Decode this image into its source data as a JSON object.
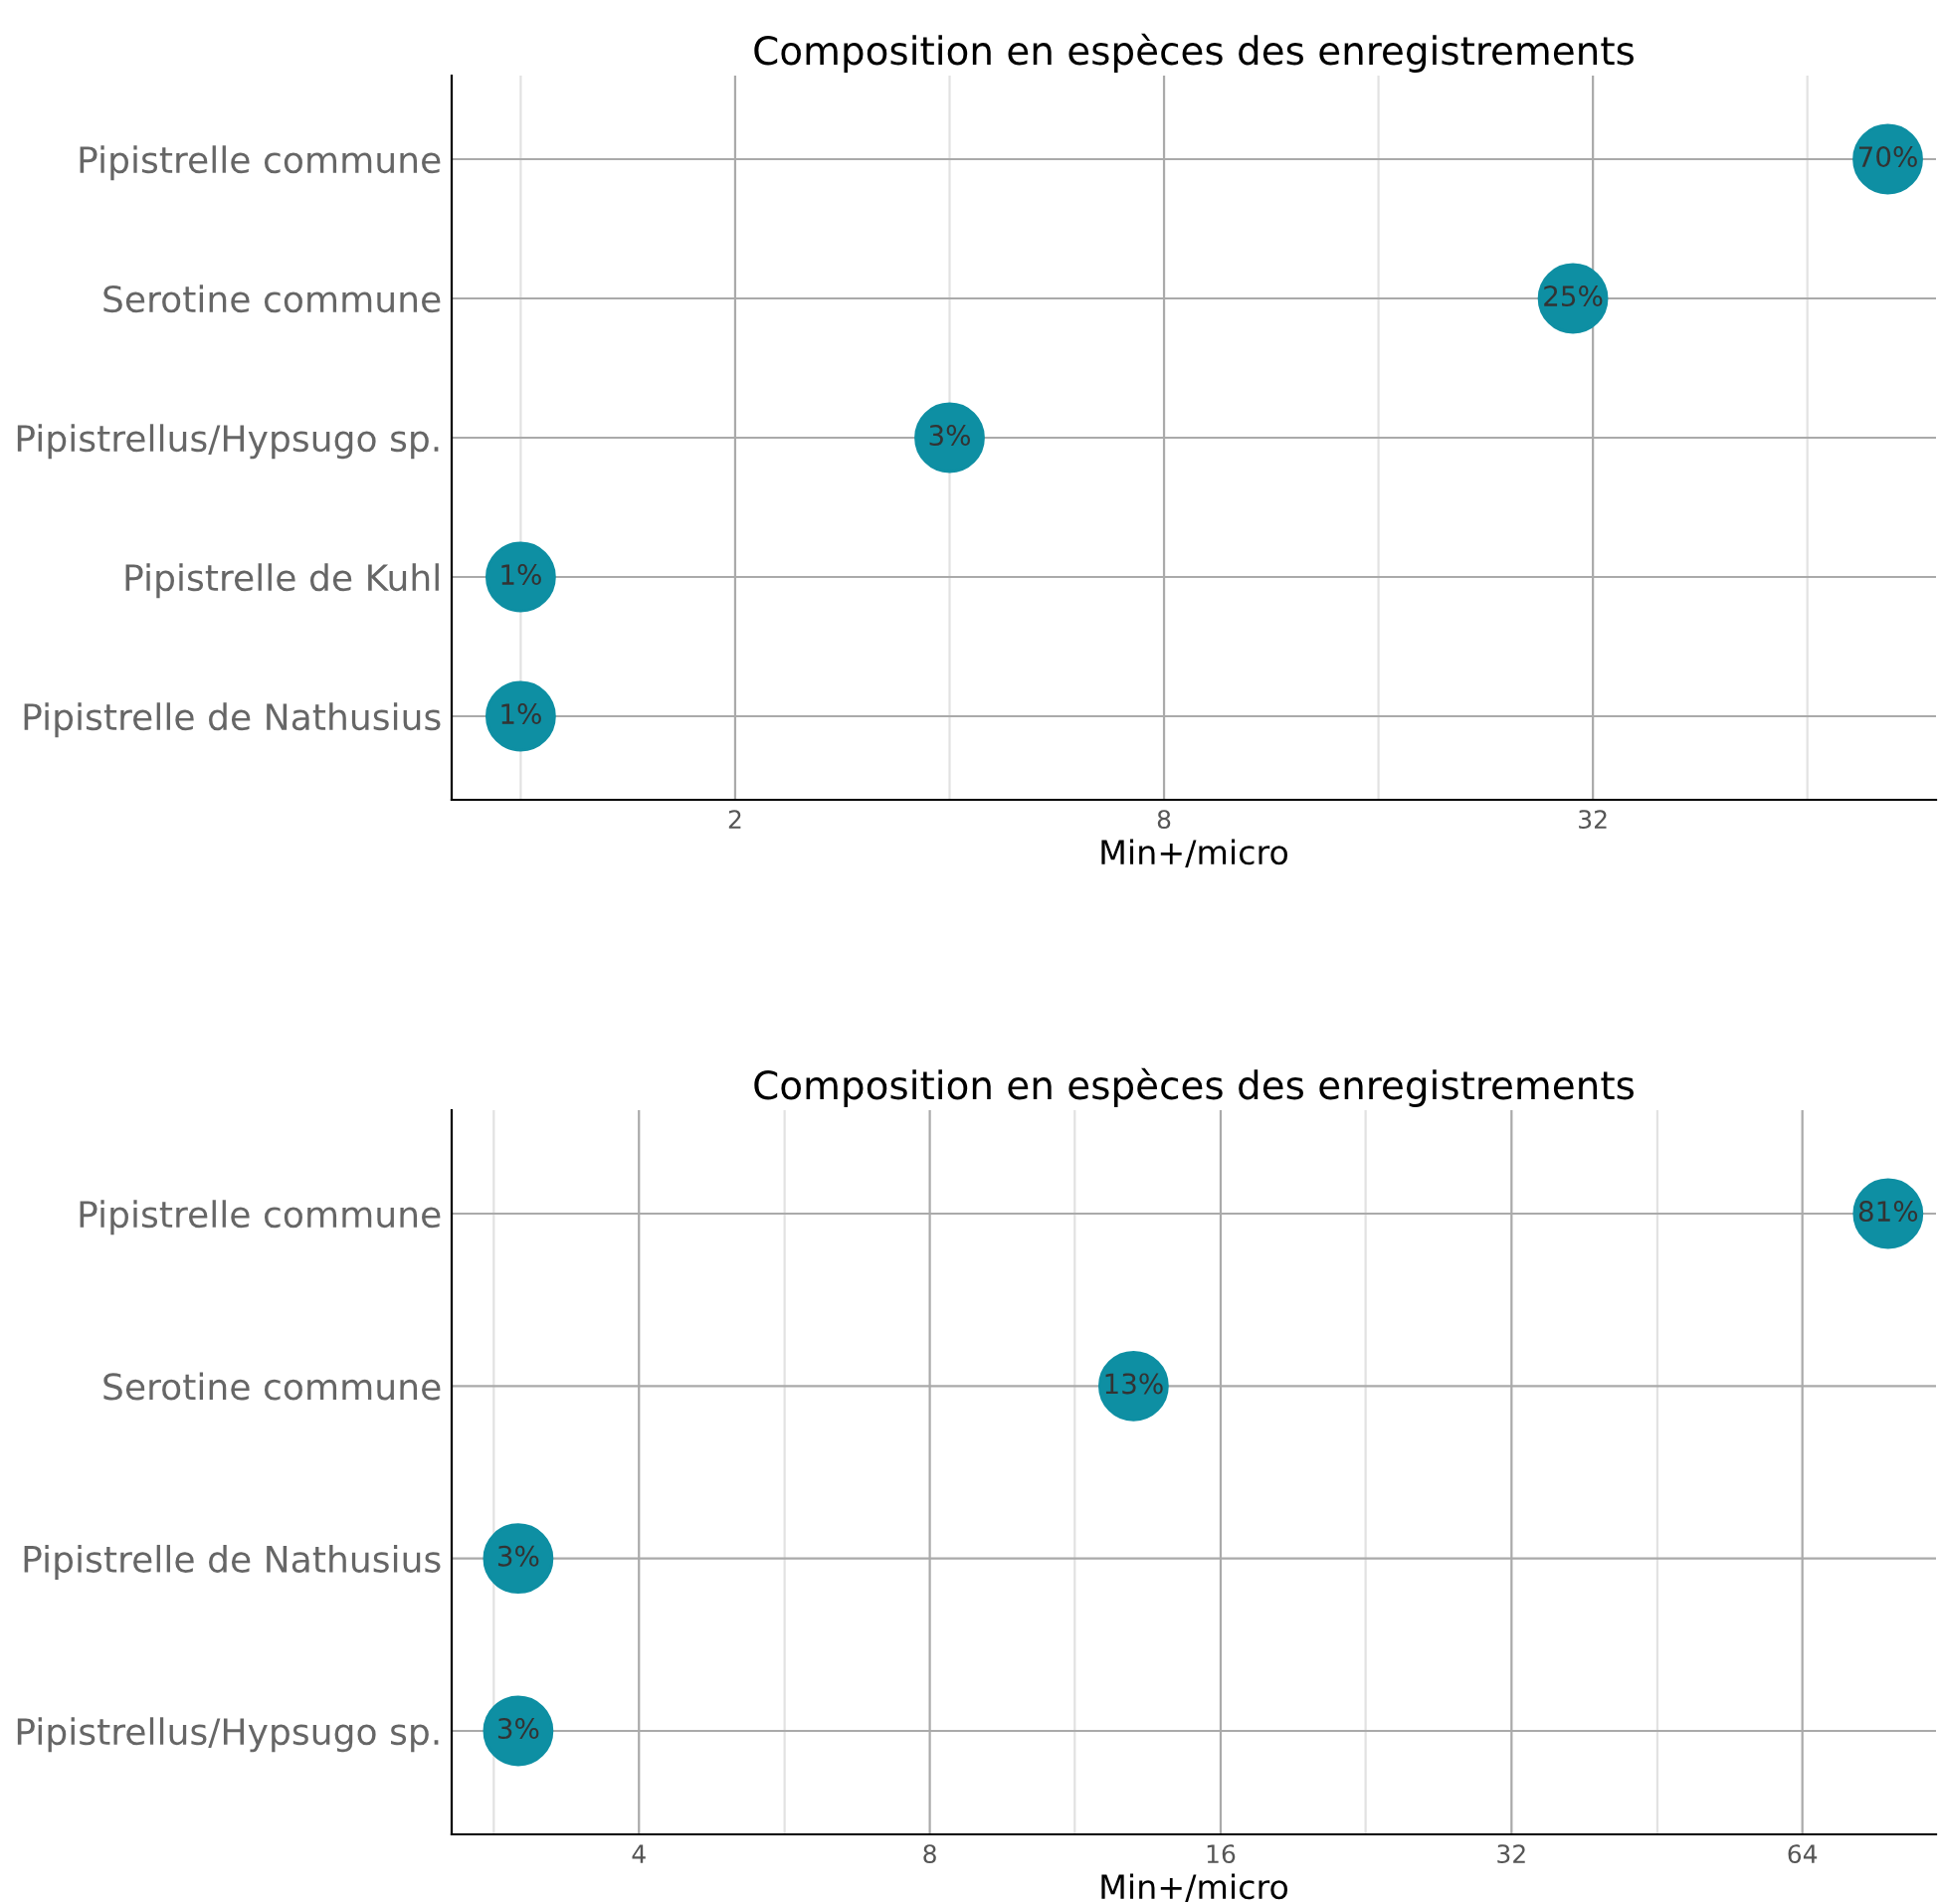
{
  "chart_data": [
    {
      "type": "scatter",
      "title": "Composition en espèces des enregistrements",
      "xlabel": "Min+/micro",
      "log": "x",
      "categories": [
        "Pipistrelle commune",
        "Serotine commune",
        "Pipistrellus/Hypsugo sp.",
        "Pipistrelle de Kuhl",
        "Pipistrelle de Nathusius"
      ],
      "values": [
        83,
        30,
        4,
        1,
        1
      ],
      "color": "#0e8fa3",
      "marker": "circle",
      "annotations": [
        {
          "text": "70%",
          "x": 83,
          "y": "Pipistrelle commune"
        },
        {
          "text": "25%",
          "x": 30,
          "y": "Serotine commune"
        },
        {
          "text": "3%",
          "x": 4,
          "y": "Pipistrellus/Hypsugo sp."
        },
        {
          "text": "1%",
          "x": 1,
          "y": "Pipistrelle de Kuhl"
        },
        {
          "text": "1%",
          "x": 1,
          "y": "Pipistrelle de Nathusius"
        }
      ],
      "orientation": "horizontal",
      "xlim": [
        0.8,
        97
      ],
      "xticks": [
        {
          "value": 1,
          "label": null
        },
        2,
        {
          "value": 4,
          "label": null
        },
        8,
        {
          "value": 16,
          "label": null
        },
        32,
        {
          "value": 64,
          "label": null
        }
      ],
      "grid": true,
      "legend": false
    },
    {
      "type": "scatter",
      "title": "Composition en espèces des enregistrements",
      "xlabel": "Min+/micro",
      "log": "x",
      "categories": [
        "Pipistrelle commune",
        "Serotine commune",
        "Pipistrelle de Nathusius",
        "Pipistrellus/Hypsugo sp."
      ],
      "values": [
        78.5,
        13,
        3,
        3
      ],
      "color": "#0e8fa3",
      "marker": "circle",
      "annotations": [
        {
          "text": "81%",
          "x": 78.5,
          "y": "Pipistrelle commune"
        },
        {
          "text": "13%",
          "x": 13,
          "y": "Serotine commune"
        },
        {
          "text": "3%",
          "x": 3,
          "y": "Pipistrelle de Nathusius"
        },
        {
          "text": "3%",
          "x": 3,
          "y": "Pipistrellus/Hypsugo sp."
        }
      ],
      "orientation": "horizontal",
      "xlim": [
        2.56,
        88
      ],
      "xticks": [
        {
          "value": 2.83,
          "label": null
        },
        4,
        {
          "value": 5.66,
          "label": null
        },
        8,
        {
          "value": 11.3,
          "label": null
        },
        16,
        {
          "value": 22.6,
          "label": null
        },
        32,
        {
          "value": 45.3,
          "label": null
        },
        64
      ],
      "grid": true,
      "legend": false
    }
  ]
}
